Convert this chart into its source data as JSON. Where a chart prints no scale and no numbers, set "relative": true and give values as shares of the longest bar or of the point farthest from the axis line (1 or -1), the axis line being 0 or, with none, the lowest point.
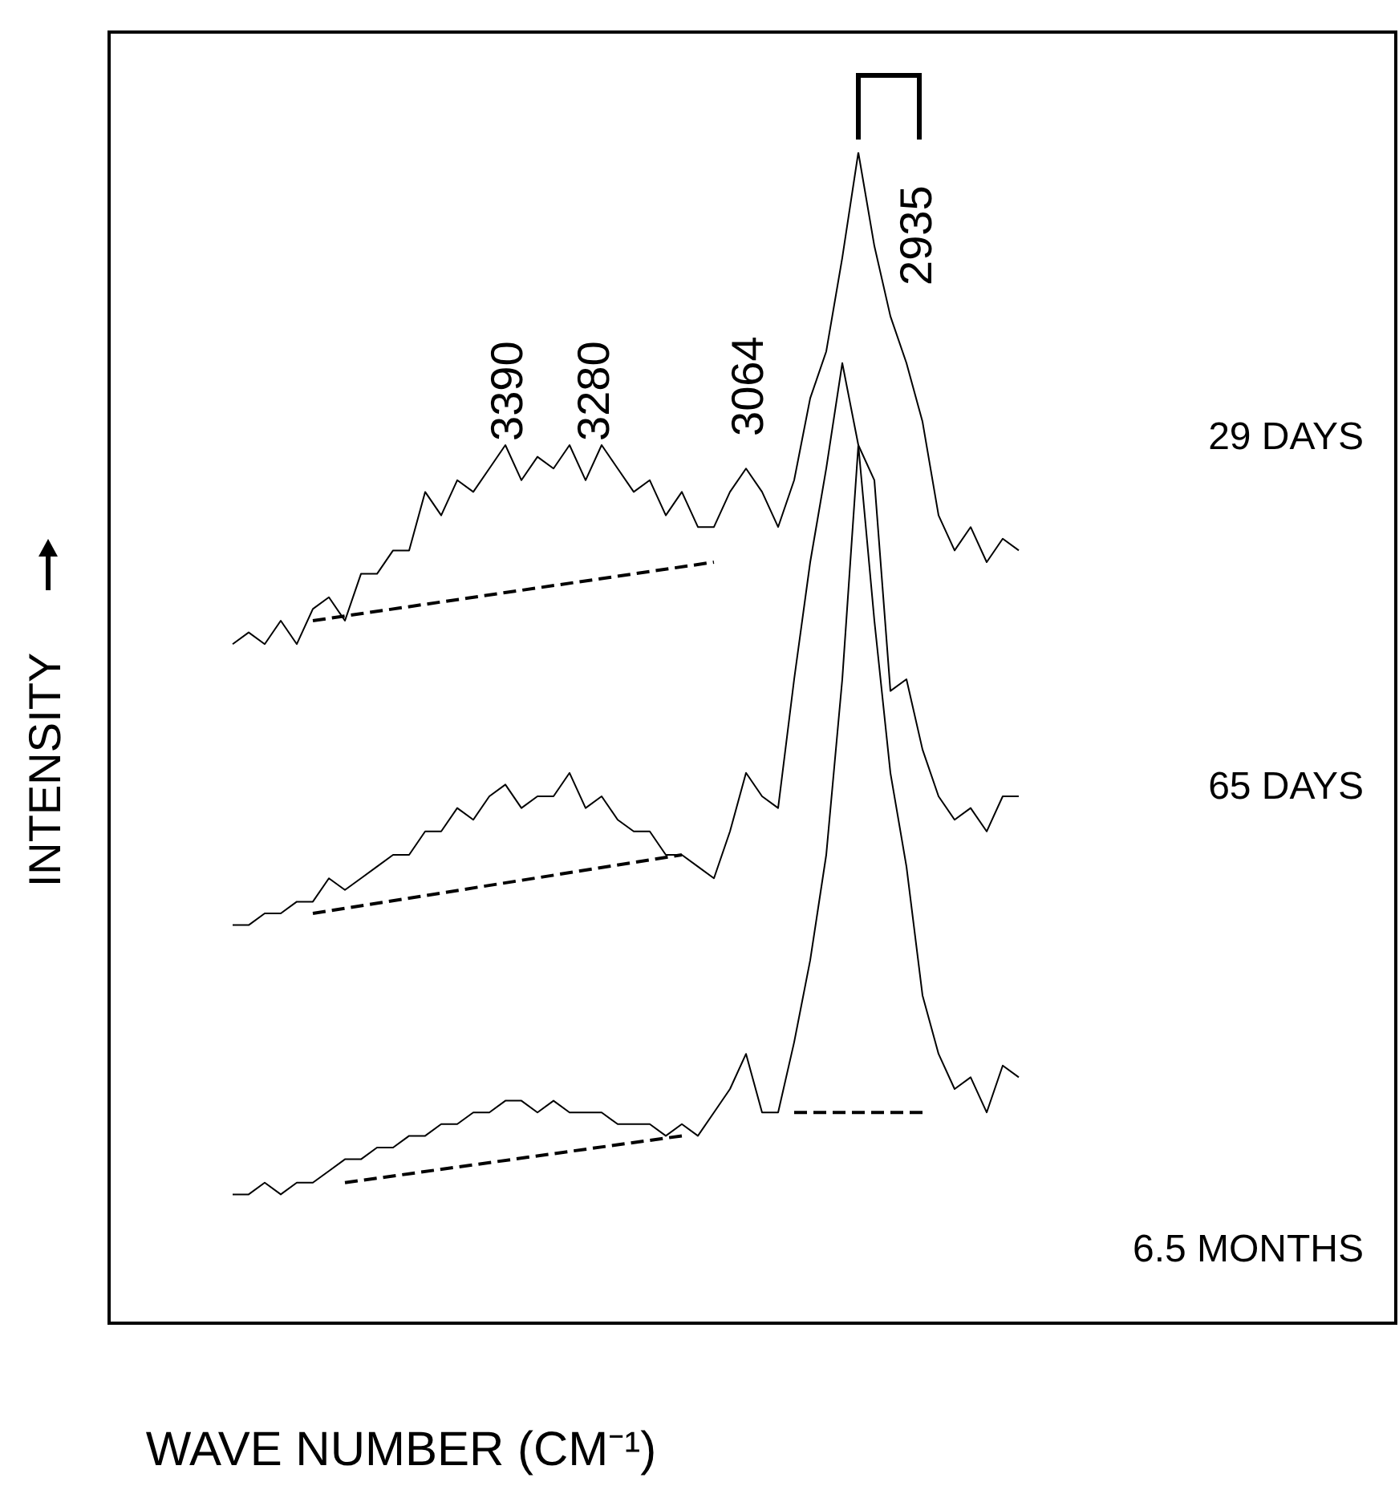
{
  "chart_data": {
    "type": "line",
    "relative": true,
    "xlabel": "WAVE NUMBER (CM⁻¹)",
    "ylabel": "INTENSITY",
    "legend": false,
    "marker": "none",
    "line_style": "solid",
    "annotations": [
      "3390",
      "3280",
      "3064",
      "2935"
    ],
    "categories": [
      null,
      null,
      null,
      null,
      null,
      null,
      null,
      null,
      null,
      null,
      null,
      null,
      null,
      null,
      null,
      null,
      null,
      null,
      null,
      null,
      null,
      null,
      null,
      null,
      null,
      null,
      null,
      null,
      null,
      null,
      null,
      null,
      null,
      null,
      null,
      null,
      null,
      null,
      null,
      null,
      null,
      null,
      null,
      null,
      null,
      null,
      null,
      null,
      null,
      null
    ],
    "series": [
      {
        "name": "29 DAYS",
        "color": "#000000",
        "values": [
          0.58,
          0.59,
          0.58,
          0.6,
          0.58,
          0.61,
          0.62,
          0.6,
          0.64,
          0.64,
          0.66,
          0.66,
          0.71,
          0.69,
          0.72,
          0.71,
          0.73,
          0.75,
          0.72,
          0.74,
          0.73,
          0.75,
          0.72,
          0.75,
          0.73,
          0.71,
          0.72,
          0.69,
          0.71,
          0.68,
          0.68,
          0.71,
          0.73,
          0.71,
          0.68,
          0.72,
          0.79,
          0.83,
          0.91,
          1,
          0.92,
          0.86,
          0.82,
          0.77,
          0.69,
          0.66,
          0.68,
          0.65,
          0.67,
          0.66
        ]
      },
      {
        "name": "65 DAYS",
        "color": "#000000",
        "values": [
          0.34,
          0.34,
          0.35,
          0.35,
          0.36,
          0.36,
          0.38,
          0.37,
          0.38,
          0.39,
          0.4,
          0.4,
          0.42,
          0.42,
          0.44,
          0.43,
          0.45,
          0.46,
          0.44,
          0.45,
          0.45,
          0.47,
          0.44,
          0.45,
          0.43,
          0.42,
          0.42,
          0.4,
          0.4,
          0.39,
          0.38,
          0.42,
          0.47,
          0.45,
          0.44,
          0.55,
          0.65,
          0.73,
          0.82,
          0.75,
          0.72,
          0.54,
          0.55,
          0.49,
          0.45,
          0.43,
          0.44,
          0.42,
          0.45,
          0.45
        ]
      },
      {
        "name": "6.5 MONTHS",
        "color": "#000000",
        "values": [
          0.11,
          0.11,
          0.12,
          0.11,
          0.12,
          0.12,
          0.13,
          0.14,
          0.14,
          0.15,
          0.15,
          0.16,
          0.16,
          0.17,
          0.17,
          0.18,
          0.18,
          0.19,
          0.19,
          0.18,
          0.19,
          0.18,
          0.18,
          0.18,
          0.17,
          0.17,
          0.17,
          0.16,
          0.17,
          0.16,
          0.18,
          0.2,
          0.23,
          0.18,
          0.18,
          0.24,
          0.31,
          0.4,
          0.55,
          0.75,
          0.6,
          0.47,
          0.39,
          0.28,
          0.23,
          0.2,
          0.21,
          0.18,
          0.22,
          0.21
        ]
      },
      {
        "color": "#000000",
        "line_style": "dashed",
        "values": [
          null,
          null,
          null,
          null,
          null,
          0.6,
          null,
          null,
          null,
          null,
          null,
          null,
          null,
          null,
          null,
          null,
          null,
          null,
          null,
          null,
          null,
          null,
          null,
          null,
          null,
          null,
          null,
          null,
          null,
          null,
          0.65,
          null,
          null,
          null,
          null,
          null,
          null,
          null,
          null,
          null,
          null,
          null,
          null,
          null,
          null,
          null,
          null,
          null,
          null,
          null
        ]
      },
      {
        "color": "#000000",
        "line_style": "dashed",
        "values": [
          null,
          null,
          null,
          null,
          null,
          0.35,
          null,
          null,
          null,
          null,
          null,
          null,
          null,
          null,
          null,
          null,
          null,
          null,
          null,
          null,
          null,
          null,
          null,
          null,
          null,
          null,
          null,
          null,
          0.4,
          null,
          null,
          null,
          null,
          null,
          null,
          null,
          null,
          null,
          null,
          null,
          null,
          null,
          null,
          null,
          null,
          null,
          null,
          null,
          null,
          null
        ]
      },
      {
        "color": "#000000",
        "line_style": "dashed",
        "values": [
          null,
          null,
          null,
          null,
          null,
          null,
          null,
          0.12,
          null,
          null,
          null,
          null,
          null,
          null,
          null,
          null,
          null,
          null,
          null,
          null,
          null,
          null,
          null,
          null,
          null,
          null,
          null,
          null,
          0.16,
          null,
          null,
          null,
          null,
          null,
          null,
          null,
          null,
          null,
          null,
          null,
          null,
          null,
          null,
          null,
          null,
          null,
          null,
          null,
          null,
          null
        ]
      },
      {
        "color": "#000000",
        "line_style": "dashed",
        "values": [
          null,
          null,
          null,
          null,
          null,
          null,
          null,
          null,
          null,
          null,
          null,
          null,
          null,
          null,
          null,
          null,
          null,
          null,
          null,
          null,
          null,
          null,
          null,
          null,
          null,
          null,
          null,
          null,
          null,
          null,
          null,
          null,
          null,
          null,
          null,
          0.18,
          null,
          null,
          null,
          null,
          null,
          null,
          null,
          0.18,
          null,
          null,
          null,
          null,
          null,
          null
        ]
      }
    ]
  }
}
